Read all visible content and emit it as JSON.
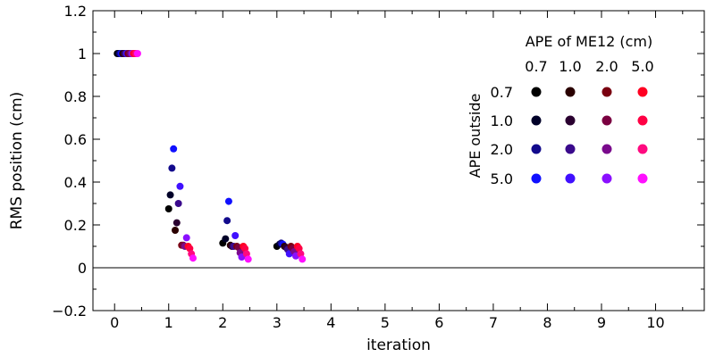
{
  "chart_data": {
    "type": "scatter",
    "xlabel": "iteration",
    "ylabel": "RMS position (cm)",
    "xlim": [
      -0.4,
      10.9
    ],
    "ylim": [
      -0.2,
      1.2
    ],
    "x_ticks": [
      0,
      1,
      2,
      3,
      4,
      5,
      6,
      7,
      8,
      9,
      10
    ],
    "y_ticks": [
      -0.2,
      0,
      0.2,
      0.4,
      0.6,
      0.8,
      1,
      1.2
    ],
    "y_tick_labels": [
      "−0.2",
      "0",
      "0.2",
      "0.4",
      "0.6",
      "0.8",
      "1",
      "1.2"
    ],
    "reference_line_y": 0,
    "grid": false,
    "legend": {
      "placement": "top-right",
      "title": "APE of ME12 (cm)",
      "column_labels": [
        "0.7",
        "1.0",
        "2.0",
        "5.0"
      ],
      "row_title": "APE outside",
      "row_labels": [
        "0.7",
        "1.0",
        "2.0",
        "5.0"
      ],
      "colors": [
        [
          "#000000",
          "#2a0000",
          "#7a0010",
          "#ff0022"
        ],
        [
          "#000028",
          "#2a0030",
          "#7a0040",
          "#ff0044"
        ],
        [
          "#120a8c",
          "#3a0a8c",
          "#7a0a8c",
          "#ff0a80"
        ],
        [
          "#1010ff",
          "#4010ff",
          "#8a10ff",
          "#ff10ff"
        ]
      ]
    },
    "series": [
      {
        "outside": "0.7",
        "me12": "0.7",
        "color": "#000000",
        "x": [
          0.05,
          1.0,
          2.0,
          3.0
        ],
        "y": [
          1.0,
          0.275,
          0.115,
          0.1
        ]
      },
      {
        "outside": "1.0",
        "me12": "0.7",
        "color": "#000028",
        "x": [
          0.075,
          1.03,
          2.05,
          3.05
        ],
        "y": [
          1.0,
          0.34,
          0.135,
          0.11
        ]
      },
      {
        "outside": "2.0",
        "me12": "0.7",
        "color": "#120a8c",
        "x": [
          0.1,
          1.06,
          2.08,
          3.08
        ],
        "y": [
          1.0,
          0.465,
          0.22,
          0.115
        ]
      },
      {
        "outside": "5.0",
        "me12": "0.7",
        "color": "#1010ff",
        "x": [
          0.125,
          1.09,
          2.11,
          3.11
        ],
        "y": [
          1.0,
          0.555,
          0.31,
          0.11
        ]
      },
      {
        "outside": "0.7",
        "me12": "1.0",
        "color": "#2a0000",
        "x": [
          0.15,
          1.12,
          2.14,
          3.14
        ],
        "y": [
          1.0,
          0.175,
          0.105,
          0.1
        ]
      },
      {
        "outside": "1.0",
        "me12": "1.0",
        "color": "#2a0030",
        "x": [
          0.175,
          1.15,
          2.17,
          3.17
        ],
        "y": [
          1.0,
          0.21,
          0.1,
          0.095
        ]
      },
      {
        "outside": "2.0",
        "me12": "1.0",
        "color": "#3a0a8c",
        "x": [
          0.2,
          1.18,
          2.2,
          3.2
        ],
        "y": [
          1.0,
          0.3,
          0.1,
          0.085
        ]
      },
      {
        "outside": "5.0",
        "me12": "1.0",
        "color": "#4010ff",
        "x": [
          0.225,
          1.21,
          2.23,
          3.23
        ],
        "y": [
          1.0,
          0.38,
          0.15,
          0.065
        ]
      },
      {
        "outside": "0.7",
        "me12": "2.0",
        "color": "#7a0010",
        "x": [
          0.25,
          1.24,
          2.26,
          3.26
        ],
        "y": [
          1.0,
          0.105,
          0.1,
          0.1
        ]
      },
      {
        "outside": "1.0",
        "me12": "2.0",
        "color": "#7a0040",
        "x": [
          0.275,
          1.27,
          2.29,
          3.29
        ],
        "y": [
          1.0,
          0.105,
          0.095,
          0.09
        ]
      },
      {
        "outside": "2.0",
        "me12": "2.0",
        "color": "#7a0a8c",
        "x": [
          0.3,
          1.3,
          2.32,
          3.32
        ],
        "y": [
          1.0,
          0.1,
          0.07,
          0.075
        ]
      },
      {
        "outside": "5.0",
        "me12": "2.0",
        "color": "#8a10ff",
        "x": [
          0.325,
          1.33,
          2.35,
          3.35
        ],
        "y": [
          1.0,
          0.14,
          0.05,
          0.055
        ]
      },
      {
        "outside": "0.7",
        "me12": "5.0",
        "color": "#ff0022",
        "x": [
          0.35,
          1.36,
          2.38,
          3.38
        ],
        "y": [
          1.0,
          0.1,
          0.1,
          0.1
        ]
      },
      {
        "outside": "1.0",
        "me12": "5.0",
        "color": "#ff0044",
        "x": [
          0.375,
          1.39,
          2.41,
          3.41
        ],
        "y": [
          1.0,
          0.09,
          0.09,
          0.09
        ]
      },
      {
        "outside": "2.0",
        "me12": "5.0",
        "color": "#ff0a80",
        "x": [
          0.4,
          1.42,
          2.44,
          3.44
        ],
        "y": [
          1.0,
          0.065,
          0.065,
          0.065
        ]
      },
      {
        "outside": "5.0",
        "me12": "5.0",
        "color": "#ff10ff",
        "x": [
          0.425,
          1.45,
          2.47,
          3.47
        ],
        "y": [
          1.0,
          0.045,
          0.04,
          0.04
        ]
      }
    ]
  }
}
